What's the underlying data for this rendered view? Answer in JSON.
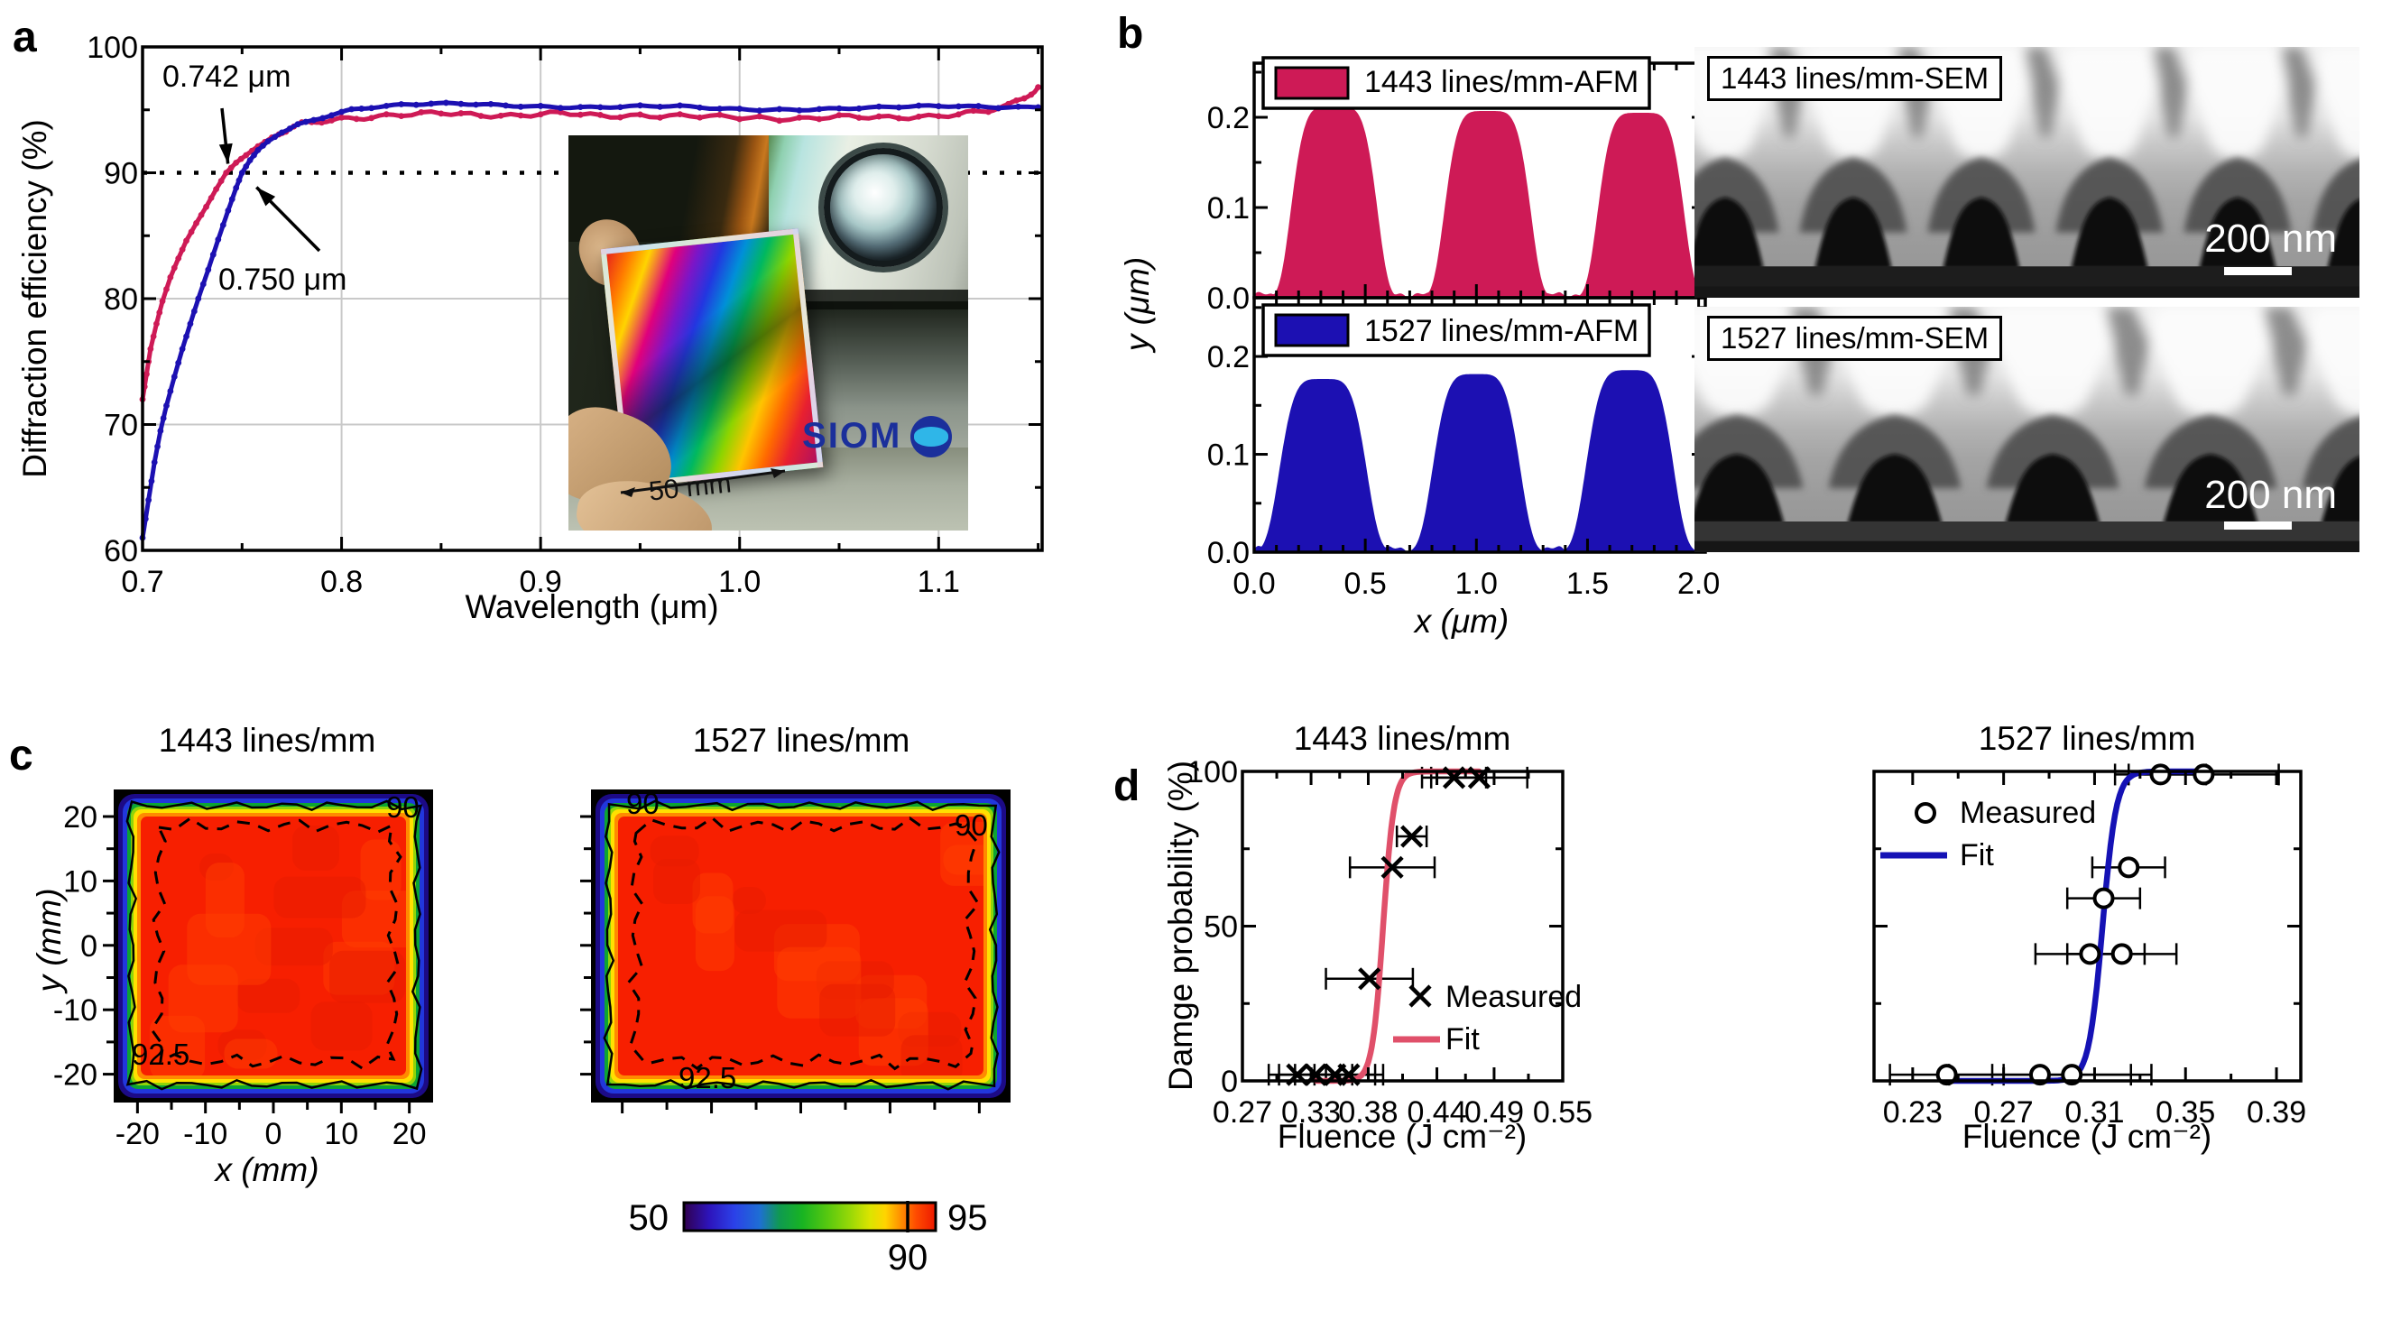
{
  "panels": {
    "a": "a",
    "b": "b",
    "c": "c",
    "d": "d"
  },
  "panel_a": {
    "inset_scale": "50 mm",
    "inset_logo": "SIOM"
  },
  "panel_b": {
    "sem_1443": "1443 lines/mm-SEM",
    "sem_1527": "1527 lines/mm-SEM",
    "scalebar": "200 nm"
  },
  "colors": {
    "crimson": "#ce1a56",
    "navy": "#1c10b2",
    "fit_red": "#e0506a",
    "fit_blue": "#1512b5",
    "grid": "#c9c9c9",
    "heat_red": "#f71f00"
  },
  "chart_data": [
    {
      "id": "diffraction",
      "type": "line",
      "title": "",
      "xlabel": "Wavelength (μm)",
      "ylabel": "Diffraction efficiency (%)",
      "xlim": [
        0.7,
        1.152
      ],
      "ylim": [
        60,
        100
      ],
      "xticks": [
        0.7,
        0.8,
        0.9,
        1.0,
        1.1
      ],
      "yticks": [
        60,
        70,
        80,
        90,
        100
      ],
      "threshold_line": 90,
      "annotations": [
        {
          "text": "0.742 μm",
          "x": 0.742,
          "y": 90
        },
        {
          "text": "0.750 μm",
          "x": 0.75,
          "y": 90
        }
      ],
      "series": [
        {
          "name": "1443 lines/mm",
          "color_key": "crimson",
          "crosses_90_at": 0.742,
          "points": [
            [
              0.7,
              72
            ],
            [
              0.702,
              74
            ],
            [
              0.704,
              76
            ],
            [
              0.707,
              78
            ],
            [
              0.71,
              79.8
            ],
            [
              0.714,
              81.7
            ],
            [
              0.718,
              83.2
            ],
            [
              0.722,
              84.6
            ],
            [
              0.727,
              86
            ],
            [
              0.732,
              87.3
            ],
            [
              0.737,
              88.7
            ],
            [
              0.742,
              90
            ],
            [
              0.747,
              90.8
            ],
            [
              0.752,
              91.4
            ],
            [
              0.758,
              92.1
            ],
            [
              0.765,
              92.8
            ],
            [
              0.772,
              93.3
            ],
            [
              0.78,
              93.8
            ],
            [
              0.79,
              94.1
            ],
            [
              0.8,
              94.3
            ],
            [
              0.815,
              94.5
            ],
            [
              0.83,
              94.6
            ],
            [
              0.85,
              94.7
            ],
            [
              0.87,
              94.6
            ],
            [
              0.89,
              94.6
            ],
            [
              0.91,
              94.7
            ],
            [
              0.93,
              94.5
            ],
            [
              0.95,
              94.6
            ],
            [
              0.97,
              94.5
            ],
            [
              0.99,
              94.4
            ],
            [
              1.01,
              94.4
            ],
            [
              1.03,
              94.3
            ],
            [
              1.05,
              94.4
            ],
            [
              1.07,
              94.4
            ],
            [
              1.09,
              94.5
            ],
            [
              1.11,
              94.6
            ],
            [
              1.125,
              94.9
            ],
            [
              1.135,
              95.3
            ],
            [
              1.143,
              96.0
            ],
            [
              1.15,
              96.8
            ]
          ]
        },
        {
          "name": "1527 lines/mm",
          "color_key": "navy",
          "crosses_90_at": 0.75,
          "points": [
            [
              0.7,
              61
            ],
            [
              0.703,
              64
            ],
            [
              0.706,
              67
            ],
            [
              0.709,
              69.5
            ],
            [
              0.712,
              71.5
            ],
            [
              0.716,
              73.8
            ],
            [
              0.72,
              76
            ],
            [
              0.724,
              78
            ],
            [
              0.728,
              80
            ],
            [
              0.733,
              82.3
            ],
            [
              0.738,
              84.7
            ],
            [
              0.743,
              87
            ],
            [
              0.747,
              88.8
            ],
            [
              0.75,
              90
            ],
            [
              0.754,
              91
            ],
            [
              0.758,
              91.8
            ],
            [
              0.763,
              92.5
            ],
            [
              0.77,
              93.2
            ],
            [
              0.778,
              93.8
            ],
            [
              0.786,
              94.2
            ],
            [
              0.795,
              94.6
            ],
            [
              0.805,
              95.0
            ],
            [
              0.815,
              95.2
            ],
            [
              0.83,
              95.4
            ],
            [
              0.845,
              95.5
            ],
            [
              0.86,
              95.5
            ],
            [
              0.875,
              95.4
            ],
            [
              0.89,
              95.3
            ],
            [
              0.91,
              95.2
            ],
            [
              0.93,
              95.2
            ],
            [
              0.95,
              95.3
            ],
            [
              0.97,
              95.3
            ],
            [
              0.99,
              95.1
            ],
            [
              1.01,
              95.0
            ],
            [
              1.03,
              95.0
            ],
            [
              1.05,
              95.1
            ],
            [
              1.07,
              95.2
            ],
            [
              1.09,
              95.3
            ],
            [
              1.11,
              95.3
            ],
            [
              1.13,
              95.2
            ],
            [
              1.15,
              95.2
            ]
          ]
        }
      ]
    },
    {
      "id": "afm_1443",
      "type": "area",
      "legend": "1443 lines/mm-AFM",
      "color_key": "crimson",
      "xlabel": "x (μm)",
      "ylabel": "y (μm)",
      "xlim": [
        0,
        2.03
      ],
      "ylim": [
        0,
        0.26
      ],
      "xticks": [
        0.0,
        0.5,
        1.0,
        1.5,
        2.0
      ],
      "yticks": [
        0.0,
        0.1,
        0.2
      ],
      "profile": {
        "centers": [
          0.36,
          1.05,
          1.74
        ],
        "heights": [
          0.212,
          0.207,
          0.205
        ],
        "half_width": 0.205,
        "power": 5
      }
    },
    {
      "id": "afm_1527",
      "type": "area",
      "legend": "1527 lines/mm-AFM",
      "color_key": "navy",
      "xlabel": "x (μm)",
      "ylabel": "y (μm)",
      "xlim": [
        0,
        2.03
      ],
      "ylim": [
        0,
        0.26
      ],
      "xticks": [
        0.0,
        0.5,
        1.0,
        1.5,
        2.0
      ],
      "yticks": [
        0.0,
        0.1,
        0.2
      ],
      "profile": {
        "centers": [
          0.31,
          1.0,
          1.69
        ],
        "heights": [
          0.177,
          0.182,
          0.186
        ],
        "half_width": 0.21,
        "power": 4.5
      }
    },
    {
      "id": "map_1443",
      "type": "heatmap",
      "title": "1443 lines/mm",
      "xlabel": "x (mm)",
      "ylabel": "y (mm)",
      "xlim": [
        -23.5,
        23.5
      ],
      "ylim": [
        -24.4,
        24.2
      ],
      "xticks": [
        -20,
        -10,
        0,
        10,
        20
      ],
      "yticks": [
        -20,
        -10,
        0,
        10,
        20
      ],
      "zrange": [
        50,
        95
      ],
      "contour_levels": [
        90,
        92.5
      ],
      "plateau_value": "> 92.5"
    },
    {
      "id": "map_1527",
      "type": "heatmap",
      "title": "1527 lines/mm",
      "xlabel": "x (mm)",
      "ylabel": "y (mm)",
      "xlim": [
        -23.5,
        23.5
      ],
      "ylim": [
        -24.4,
        24.2
      ],
      "xticks": [
        -20,
        -10,
        0,
        10,
        20
      ],
      "yticks": [
        -20,
        -10,
        0,
        10,
        20
      ],
      "zrange": [
        50,
        95
      ],
      "contour_levels": [
        90,
        92.5
      ],
      "plateau_value": "> 92.5"
    },
    {
      "id": "colorbar",
      "type": "colorbar",
      "min": 50,
      "max": 95,
      "marker": 90
    },
    {
      "id": "damage_1443",
      "type": "scatter",
      "title": "1443 lines/mm",
      "marker": "x",
      "xlabel": "Fluence (J cm⁻²)",
      "ylabel": "Damge probability (%)",
      "legend": [
        "Measured",
        "Fit"
      ],
      "xlim": [
        0.27,
        0.55
      ],
      "ylim": [
        0,
        100
      ],
      "xticks": [
        0.27,
        0.33,
        0.38,
        0.44,
        0.49,
        0.55
      ],
      "yticks": [
        0,
        50,
        100
      ],
      "fit": {
        "center": 0.393,
        "k": 210,
        "range": [
          0.335,
          0.478
        ],
        "color_key": "fit_red"
      },
      "points": [
        [
          0.318,
          2,
          0.025
        ],
        [
          0.334,
          2,
          0.032
        ],
        [
          0.351,
          2,
          0.035
        ],
        [
          0.363,
          2,
          0.03
        ],
        [
          0.381,
          33,
          0.038
        ],
        [
          0.401,
          69,
          0.037
        ],
        [
          0.418,
          79,
          0.013
        ],
        [
          0.455,
          98,
          0.028
        ],
        [
          0.477,
          98,
          0.042
        ]
      ]
    },
    {
      "id": "damage_1527",
      "type": "scatter",
      "title": "1527 lines/mm",
      "marker": "o",
      "xlabel": "Fluence (J cm⁻²)",
      "ylabel": "Damge probability (%)",
      "legend": [
        "Measured",
        "Fit"
      ],
      "xlim": [
        0.213,
        0.4007
      ],
      "ylim": [
        0,
        100
      ],
      "xticks": [
        0.23,
        0.27,
        0.31,
        0.35,
        0.39
      ],
      "yticks": [
        0,
        50,
        100
      ],
      "fit": {
        "center": 0.3135,
        "k": 330,
        "range": [
          0.244,
          0.359
        ],
        "color_key": "fit_blue"
      },
      "points": [
        [
          0.245,
          2,
          0.025
        ],
        [
          0.286,
          2,
          0.04
        ],
        [
          0.3,
          2,
          0.035
        ],
        [
          0.308,
          41,
          0.024
        ],
        [
          0.322,
          41,
          0.024
        ],
        [
          0.314,
          59,
          0.016
        ],
        [
          0.325,
          69,
          0.016
        ],
        [
          0.339,
          99,
          0.02
        ],
        [
          0.358,
          99,
          0.033
        ]
      ]
    }
  ]
}
